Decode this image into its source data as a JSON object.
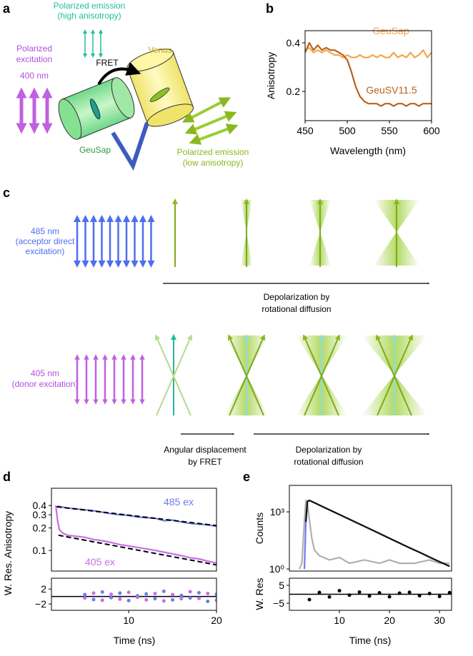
{
  "panel_labels": [
    "a",
    "b",
    "c",
    "d",
    "e"
  ],
  "panel_a": {
    "emission_high": [
      "Polarized emission",
      "(high anisotropy)"
    ],
    "excitation": [
      "Polarized",
      "excitation"
    ],
    "wavelength": "400 nm",
    "fret": "FRET",
    "acceptor": "Venus",
    "donor": "GeuSap",
    "emission_low": [
      "Polarized emission",
      "(low anisotropy)"
    ]
  },
  "panel_c": {
    "row_1": {
      "excitation": [
        "485 nm",
        "(acceptor direct",
        "excitation)"
      ],
      "arrow_label": [
        "Depolarization by",
        "rotational diffusion"
      ]
    },
    "row_2": {
      "excitation": [
        "405 nm",
        "(donor excitation)"
      ],
      "fret_label": [
        "Angular displacement",
        "by FRET"
      ],
      "arrow_label": [
        "Depolarization by",
        "rotational diffusion"
      ]
    }
  },
  "chart_data": [
    {
      "type": "line",
      "xlabel": "Wavelength (nm)",
      "ylabel": "Anisotropy",
      "xlim": [
        450,
        600
      ],
      "ylim": [
        0.08,
        0.45
      ],
      "xticks": [
        450,
        500,
        550,
        600
      ],
      "yticks": [
        0.2,
        0.4
      ],
      "series": [
        {
          "name": "GeuSap",
          "color": "#f6a54c",
          "x": [
            450,
            455,
            460,
            465,
            470,
            475,
            480,
            485,
            490,
            495,
            500,
            505,
            510,
            515,
            520,
            525,
            530,
            535,
            540,
            545,
            550,
            555,
            560,
            565,
            570,
            575,
            580,
            585,
            590,
            595,
            600
          ],
          "values": [
            0.37,
            0.38,
            0.36,
            0.37,
            0.36,
            0.37,
            0.36,
            0.35,
            0.35,
            0.34,
            0.35,
            0.34,
            0.34,
            0.35,
            0.34,
            0.34,
            0.35,
            0.34,
            0.35,
            0.34,
            0.34,
            0.36,
            0.34,
            0.35,
            0.34,
            0.36,
            0.34,
            0.35,
            0.37,
            0.34,
            0.36
          ]
        },
        {
          "name": "GeuSV11.5",
          "color": "#b8621b",
          "x": [
            450,
            455,
            460,
            465,
            470,
            475,
            480,
            485,
            490,
            495,
            500,
            505,
            510,
            515,
            520,
            525,
            530,
            535,
            540,
            545,
            550,
            555,
            560,
            565,
            570,
            575,
            580,
            585,
            590,
            595,
            600
          ],
          "values": [
            0.36,
            0.4,
            0.37,
            0.39,
            0.37,
            0.38,
            0.37,
            0.37,
            0.36,
            0.35,
            0.33,
            0.28,
            0.22,
            0.18,
            0.16,
            0.15,
            0.15,
            0.15,
            0.14,
            0.15,
            0.15,
            0.14,
            0.15,
            0.15,
            0.14,
            0.15,
            0.15,
            0.14,
            0.15,
            0.15,
            0.15
          ]
        }
      ]
    },
    {
      "type": "line",
      "ylabel": "W. Res. Anisotropy",
      "xlim": [
        1.2,
        20
      ],
      "ylim": [
        0.053,
        0.68
      ],
      "ylog": true,
      "yticks": [
        0.1,
        0.2,
        0.3,
        0.4
      ],
      "series": [
        {
          "name": "485 ex",
          "color": "#6f7cf0",
          "x": [
            1.7,
            2,
            3,
            4,
            5,
            6,
            7,
            8,
            9,
            10,
            11,
            12,
            13,
            14,
            15,
            16,
            17,
            18,
            19,
            20
          ],
          "values": [
            0.38,
            0.39,
            0.37,
            0.36,
            0.35,
            0.34,
            0.325,
            0.31,
            0.3,
            0.295,
            0.28,
            0.275,
            0.27,
            0.25,
            0.255,
            0.24,
            0.23,
            0.225,
            0.22,
            0.21
          ]
        },
        {
          "name": "405 ex",
          "color": "#c86ee6",
          "x": [
            1.7,
            1.9,
            2.1,
            2.5,
            3,
            4,
            5,
            6,
            7,
            8,
            9,
            10,
            11,
            12,
            13,
            14,
            15,
            16,
            17,
            18,
            19,
            20
          ],
          "values": [
            0.4,
            0.25,
            0.19,
            0.17,
            0.16,
            0.155,
            0.15,
            0.14,
            0.135,
            0.128,
            0.12,
            0.115,
            0.11,
            0.105,
            0.1,
            0.095,
            0.09,
            0.085,
            0.08,
            0.077,
            0.072,
            0.068
          ]
        },
        {
          "color": "#000000",
          "dashed": true,
          "x": [
            1.8,
            20
          ],
          "values": [
            0.385,
            0.215
          ]
        },
        {
          "color": "#000000",
          "dashed": true,
          "x": [
            2,
            20
          ],
          "values": [
            0.16,
            0.064
          ]
        }
      ]
    },
    {
      "type": "scatter",
      "xlabel": "Time (ns)",
      "xlim": [
        1.2,
        20
      ],
      "ylim": [
        -3.7,
        4.9
      ],
      "xticks": [
        10,
        20
      ],
      "yticks": [
        2,
        {
          "value": -2,
          "label": "−2"
        }
      ],
      "zero_line": true,
      "series": [
        {
          "color": "#6f7cf0",
          "x": [
            5,
            6,
            7,
            8,
            9,
            10,
            11,
            12,
            13,
            14,
            15,
            16,
            17,
            18,
            19,
            20
          ],
          "values": [
            0.5,
            -0.8,
            1.2,
            -0.3,
            0.9,
            -1.1,
            0.2,
            0.7,
            -0.6,
            1.4,
            -0.9,
            0.3,
            -0.4,
            1.0,
            -1.3,
            0.6
          ]
        },
        {
          "color": "#c86ee6",
          "x": [
            5,
            6,
            7,
            8,
            9,
            10,
            11,
            12,
            13,
            14,
            15,
            16,
            17,
            18,
            19,
            20
          ],
          "values": [
            -0.4,
            0.9,
            -1.0,
            0.6,
            -0.7,
            1.1,
            -0.2,
            -0.9,
            0.8,
            -1.2,
            0.5,
            -0.6,
            1.3,
            -0.5,
            0.8,
            -1.0
          ]
        }
      ]
    },
    {
      "type": "line",
      "ylabel": "Counts",
      "xlim": [
        0,
        32.4
      ],
      "ylim": [
        0.78,
        24500
      ],
      "ylog": true,
      "yticks": [
        {
          "value": 1,
          "label": "10⁰"
        },
        {
          "value": 1000,
          "label": "10³"
        }
      ],
      "series": [
        {
          "color": "#b0b0b0",
          "x": [
            2,
            2.5,
            3,
            3.3,
            3.6,
            4,
            4.5,
            5,
            6,
            8,
            10,
            12,
            15,
            18,
            20,
            22,
            25,
            28,
            30,
            32
          ],
          "values": [
            1,
            2,
            300,
            4000,
            3000,
            400,
            40,
            10,
            5,
            3,
            4,
            2,
            3,
            2,
            3,
            2,
            2,
            3,
            2,
            2
          ]
        },
        {
          "color": "#6f7cf0",
          "x": [
            3,
            3.3,
            3.6,
            4,
            5,
            6,
            8,
            10,
            12,
            14,
            16,
            18,
            20,
            22,
            24,
            26,
            28,
            30,
            32
          ],
          "values": [
            1,
            300,
            3500,
            4000,
            3000,
            2260,
            1270,
            720,
            407,
            230,
            130,
            73,
            41,
            23,
            13,
            7.5,
            4.2,
            2.4,
            1.4
          ]
        },
        {
          "color": "#111111",
          "x": [
            3.3,
            3.6,
            4,
            5,
            6,
            8,
            10,
            12,
            14,
            16,
            18,
            20,
            22,
            24,
            26,
            28,
            30,
            32
          ],
          "values": [
            300,
            3500,
            4000,
            3000,
            2260,
            1270,
            720,
            407,
            230,
            130,
            73,
            41,
            23,
            13,
            7.5,
            4.2,
            2.4,
            1.4
          ]
        }
      ]
    },
    {
      "type": "scatter",
      "xlabel": "Time (ns)",
      "ylabel": "W. Res",
      "xlim": [
        0,
        32.4
      ],
      "ylim": [
        -9,
        9
      ],
      "xticks": [
        10,
        20,
        30
      ],
      "yticks": [
        5,
        {
          "value": -5,
          "label": "−5"
        }
      ],
      "zero_line": true,
      "series": [
        {
          "color": "#000000",
          "x": [
            4,
            6,
            8,
            10,
            12,
            14,
            16,
            18,
            20,
            22,
            24,
            26,
            28,
            30,
            32
          ],
          "values": [
            -3,
            1,
            -1.5,
            2,
            -0.5,
            1.2,
            -1,
            0.8,
            -1.4,
            0.6,
            1.1,
            -0.8,
            0.4,
            -1.2,
            0.9
          ]
        }
      ]
    }
  ]
}
